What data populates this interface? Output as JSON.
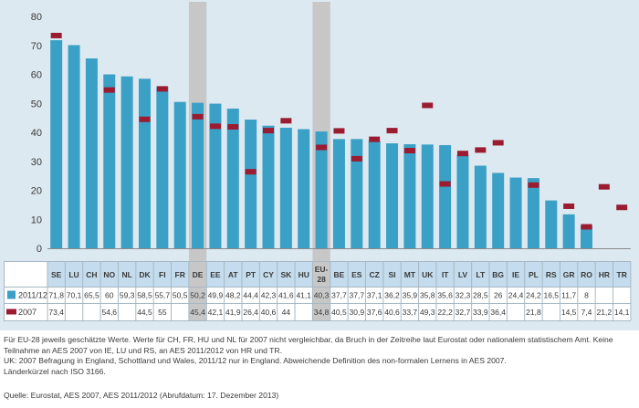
{
  "chart_data": {
    "type": "bar",
    "categories": [
      "SE",
      "LU",
      "CH",
      "NO",
      "NL",
      "DK",
      "FI",
      "FR",
      "DE",
      "EE",
      "AT",
      "PT",
      "CY",
      "SK",
      "HU",
      "EU-28",
      "BE",
      "ES",
      "CZ",
      "SI",
      "MT",
      "UK",
      "IT",
      "LV",
      "LT",
      "BG",
      "IE",
      "PL",
      "RS",
      "GR",
      "RO",
      "HR",
      "TR"
    ],
    "series": [
      {
        "name": "2011/12",
        "mark": "bar",
        "color": "#3aa0c6",
        "values": [
          71.8,
          70.1,
          65.5,
          60,
          59.3,
          58.5,
          55.7,
          50.5,
          50.2,
          49.9,
          48.2,
          44.4,
          42.3,
          41.6,
          41.1,
          40.3,
          37.7,
          37.7,
          37.1,
          36.2,
          35.9,
          35.8,
          35.6,
          32.3,
          28.5,
          26,
          24.4,
          24.2,
          16.5,
          11.7,
          8,
          null,
          null
        ],
        "labels": [
          "71,8",
          "70,1",
          "65,5",
          "60",
          "59,3",
          "58,5",
          "55,7",
          "50,5",
          "50,2",
          "49,9",
          "48,2",
          "44,4",
          "42,3",
          "41,6",
          "41,1",
          "40,3",
          "37,7",
          "37,7",
          "37,1",
          "36,2",
          "35,9",
          "35,8",
          "35,6",
          "32,3",
          "28,5",
          "26",
          "24,4",
          "24,2",
          "16,5",
          "11,7",
          "8",
          "",
          ""
        ]
      },
      {
        "name": "2007",
        "mark": "marker",
        "color": "#9b1b30",
        "values": [
          73.4,
          null,
          null,
          54.6,
          null,
          44.5,
          55,
          null,
          45.4,
          42.1,
          41.9,
          26.4,
          40.6,
          44,
          null,
          34.8,
          40.5,
          30.9,
          37.6,
          40.6,
          33.7,
          49.3,
          22.2,
          32.7,
          33.9,
          36.4,
          null,
          21.8,
          null,
          14.5,
          7.4,
          21.2,
          14.1
        ],
        "labels": [
          "73,4",
          "",
          "",
          "54,6",
          "",
          "44,5",
          "55",
          "",
          "45,4",
          "42,1",
          "41,9",
          "26,4",
          "40,6",
          "44",
          "",
          "34,8",
          "40,5",
          "30,9",
          "37,6",
          "40,6",
          "33,7",
          "49,3",
          "22,2",
          "32,7",
          "33,9",
          "36,4",
          "",
          "21,8",
          "",
          "14,5",
          "7,4",
          "21,2",
          "14,1"
        ]
      }
    ],
    "highlight_categories": [
      "DE",
      "EU-28"
    ],
    "highlight_color": "#c7c7c7",
    "y_ticks": [
      "0",
      "10",
      "20",
      "30",
      "40",
      "50",
      "60",
      "70",
      "80"
    ],
    "ylim": [
      0,
      80
    ],
    "grid": false,
    "legend": "table-rows-below"
  },
  "notes": [
    "Für EU-28 jeweils geschätzte Werte. Werte für CH, FR, HU und NL für 2007 nicht vergleichbar, da Bruch in der Zeitreihe laut Eurostat oder nationalem statistischem Amt. Keine",
    "Teilnahme an AES 2007 von IE, LU und RS, an AES 2011/2012 von HR und TR.",
    "UK: 2007 Befragung in England, Schottland und Wales, 2011/12 nur in England. Abweichende Definition des non-formalen Lernens in AES 2007.",
    "Länderkürzel nach ISO 3166."
  ],
  "source": "Quelle: Eurostat, AES 2007, AES 2011/2012 (Abrufdatum: 17. Dezember 2013)",
  "colors": {
    "panel": "#dde9f1",
    "table_bg": "#ffffff",
    "header_bg": "#c4dced",
    "text": "#3a3a3a"
  }
}
